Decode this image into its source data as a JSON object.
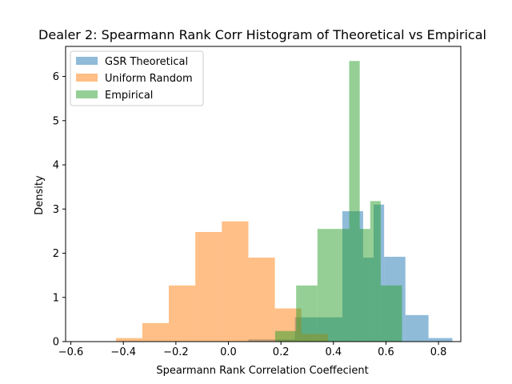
{
  "chart_data": {
    "type": "histogram",
    "title": "Dealer 2: Spearmann Rank Corr Histogram of Theoretical vs Empirical",
    "xlabel": "Spearmann Rank Correlation Coeffecient",
    "ylabel": "Density",
    "xlim": [
      -0.62,
      0.885
    ],
    "ylim": [
      0,
      6.68
    ],
    "xticks": [
      -0.6,
      -0.4,
      -0.2,
      0.0,
      0.2,
      0.4,
      0.6,
      0.8
    ],
    "xtick_labels": [
      "−0.6",
      "−0.4",
      "−0.2",
      "0.0",
      "0.2",
      "0.4",
      "0.6",
      "0.8"
    ],
    "yticks": [
      0,
      1,
      2,
      3,
      4,
      5,
      6
    ],
    "ytick_labels": [
      "0",
      "1",
      "2",
      "3",
      "4",
      "5",
      "6"
    ],
    "legend_position": "upper-left",
    "series": [
      {
        "name": "GSR Theoretical",
        "color": "#1f77b4",
        "alpha": 0.5,
        "bins": [
          {
            "x0": 0.076,
            "x1": 0.253,
            "y": 0.05
          },
          {
            "x0": 0.253,
            "x1": 0.434,
            "y": 0.55
          },
          {
            "x0": 0.434,
            "x1": 0.513,
            "y": 2.95
          },
          {
            "x0": 0.513,
            "x1": 0.553,
            "y": 1.9
          },
          {
            "x0": 0.553,
            "x1": 0.593,
            "y": 3.1
          },
          {
            "x0": 0.593,
            "x1": 0.674,
            "y": 1.92
          },
          {
            "x0": 0.674,
            "x1": 0.762,
            "y": 0.6
          },
          {
            "x0": 0.762,
            "x1": 0.853,
            "y": 0.08
          }
        ]
      },
      {
        "name": "Uniform Random",
        "color": "#ff7f0e",
        "alpha": 0.5,
        "bins": [
          {
            "x0": -0.428,
            "x1": -0.328,
            "y": 0.08
          },
          {
            "x0": -0.328,
            "x1": -0.227,
            "y": 0.42
          },
          {
            "x0": -0.227,
            "x1": -0.126,
            "y": 1.27
          },
          {
            "x0": -0.126,
            "x1": -0.025,
            "y": 2.48
          },
          {
            "x0": -0.025,
            "x1": 0.076,
            "y": 2.72
          },
          {
            "x0": 0.076,
            "x1": 0.177,
            "y": 1.9
          },
          {
            "x0": 0.177,
            "x1": 0.278,
            "y": 0.75
          },
          {
            "x0": 0.278,
            "x1": 0.379,
            "y": 0.17
          }
        ]
      },
      {
        "name": "Empirical",
        "color": "#2ca02c",
        "alpha": 0.5,
        "bins": [
          {
            "x0": 0.178,
            "x1": 0.258,
            "y": 0.24
          },
          {
            "x0": 0.258,
            "x1": 0.339,
            "y": 1.27
          },
          {
            "x0": 0.339,
            "x1": 0.42,
            "y": 2.55
          },
          {
            "x0": 0.42,
            "x1": 0.46,
            "y": 2.55
          },
          {
            "x0": 0.46,
            "x1": 0.5,
            "y": 6.35
          },
          {
            "x0": 0.5,
            "x1": 0.54,
            "y": 2.55
          },
          {
            "x0": 0.54,
            "x1": 0.58,
            "y": 3.18
          },
          {
            "x0": 0.58,
            "x1": 0.661,
            "y": 1.27
          }
        ]
      }
    ]
  }
}
